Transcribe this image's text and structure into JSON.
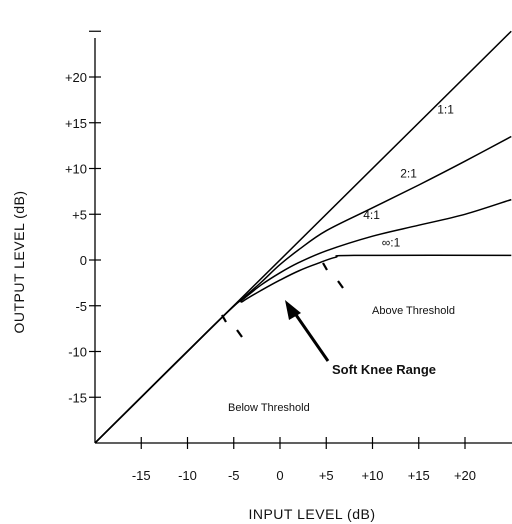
{
  "chart_data": {
    "type": "line",
    "title": "",
    "xlabel": "INPUT  LEVEL  (dB)",
    "ylabel": "OUTPUT  LEVEL  (dB)",
    "xlim": [
      -20,
      25
    ],
    "ylim": [
      -20,
      25
    ],
    "x_ticks": [
      "-15",
      "-10",
      "-5",
      "0",
      "+5",
      "+10",
      "+15",
      "+20"
    ],
    "y_ticks": [
      "+20",
      "+15",
      "+10",
      "+5",
      "0",
      "-5",
      "-10",
      "-15"
    ],
    "grid": false,
    "series": [
      {
        "name": "1:1",
        "x": [
          -20,
          25
        ],
        "y": [
          -20,
          25
        ]
      },
      {
        "name": "2:1",
        "x": [
          -20,
          -6,
          -4,
          -2,
          0,
          2,
          5,
          10,
          15,
          20,
          25
        ],
        "y": [
          -20,
          -6,
          -4.2,
          -2.4,
          -0.5,
          1.1,
          3.2,
          5.7,
          8.2,
          10.8,
          13.5
        ]
      },
      {
        "name": "4:1",
        "x": [
          -20,
          -6,
          -4,
          -2,
          0,
          2,
          5,
          10,
          15,
          20,
          25
        ],
        "y": [
          -20,
          -6,
          -4.3,
          -2.7,
          -1.4,
          -0.3,
          1.0,
          2.6,
          3.8,
          5.0,
          6.6
        ]
      },
      {
        "name": "∞:1",
        "x": [
          -20,
          -6,
          -4,
          -2,
          0,
          2,
          4,
          6,
          8,
          25
        ],
        "y": [
          -20,
          -6,
          -4.5,
          -3.3,
          -2.2,
          -1.2,
          -0.4,
          0.3,
          0.5,
          0.5
        ]
      }
    ],
    "annotations": {
      "above": "Above Threshold",
      "below": "Below Threshold",
      "knee": "Soft Knee Range"
    }
  }
}
